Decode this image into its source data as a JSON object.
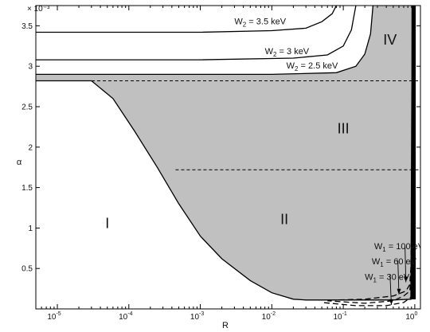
{
  "chart_data": {
    "type": "line",
    "xlabel": "R",
    "ylabel": "α",
    "y_multiplier": "× 10⁻³",
    "x_scale": "log",
    "xlim": [
      5e-06,
      1.2
    ],
    "ylim": [
      0,
      3.75
    ],
    "x_ticks": [
      {
        "value": 1e-05,
        "base": "10",
        "exp": "-5"
      },
      {
        "value": 0.0001,
        "base": "10",
        "exp": "-4"
      },
      {
        "value": 0.001,
        "base": "10",
        "exp": "-3"
      },
      {
        "value": 0.01,
        "base": "10",
        "exp": "-2"
      },
      {
        "value": 0.1,
        "base": "10",
        "exp": "-1"
      },
      {
        "value": 1,
        "base": "10",
        "exp": "0"
      }
    ],
    "y_ticks": [
      {
        "value": 0.5,
        "label": "0.5"
      },
      {
        "value": 1.0,
        "label": "1"
      },
      {
        "value": 1.5,
        "label": "1.5"
      },
      {
        "value": 2.0,
        "label": "2"
      },
      {
        "value": 2.5,
        "label": "2.5"
      },
      {
        "value": 3.0,
        "label": "3"
      },
      {
        "value": 3.5,
        "label": "3.5"
      }
    ],
    "boundary_curve": [
      [
        5e-06,
        2.82
      ],
      [
        3e-05,
        2.82
      ],
      [
        6e-05,
        2.6
      ],
      [
        0.00012,
        2.2
      ],
      [
        0.00025,
        1.75
      ],
      [
        0.0005,
        1.3
      ],
      [
        0.001,
        0.9
      ],
      [
        0.002,
        0.62
      ],
      [
        0.005,
        0.35
      ],
      [
        0.01,
        0.2
      ],
      [
        0.02,
        0.12
      ],
      [
        0.03,
        0.11
      ],
      [
        0.1,
        0.11
      ],
      [
        0.5,
        0.11
      ],
      [
        0.9,
        0.12
      ]
    ],
    "right_boundary": [
      [
        0.9,
        0.12
      ],
      [
        0.91,
        0.8
      ],
      [
        0.92,
        1.8
      ],
      [
        0.93,
        2.8
      ],
      [
        0.935,
        3.75
      ]
    ],
    "dashed_lines": [
      {
        "x_range": [
          5e-06,
          1.2
        ],
        "y": 2.82
      },
      {
        "x_range": [
          0.00045,
          1.2
        ],
        "y": 1.72
      }
    ],
    "w2_series": [
      {
        "name": "W₂ = 3.5 keV",
        "text_main": "W",
        "text_sub": "2",
        "text_rest": " = 3.5 keV",
        "points": [
          [
            5e-06,
            3.42
          ],
          [
            0.001,
            3.42
          ],
          [
            0.01,
            3.44
          ],
          [
            0.03,
            3.47
          ],
          [
            0.05,
            3.55
          ],
          [
            0.07,
            3.65
          ],
          [
            0.08,
            3.75
          ]
        ],
        "label_at": [
          0.003,
          3.52
        ]
      },
      {
        "name": "W₂ = 3 keV",
        "text_main": "W",
        "text_sub": "2",
        "text_rest": " = 3 keV",
        "points": [
          [
            5e-06,
            3.08
          ],
          [
            0.001,
            3.08
          ],
          [
            0.02,
            3.1
          ],
          [
            0.06,
            3.14
          ],
          [
            0.1,
            3.25
          ],
          [
            0.13,
            3.45
          ],
          [
            0.15,
            3.75
          ]
        ],
        "label_at": [
          0.008,
          3.15
        ]
      },
      {
        "name": "W₂ = 2.5 keV",
        "text_main": "W",
        "text_sub": "2",
        "text_rest": " = 2.5 keV",
        "points": [
          [
            5e-06,
            2.9
          ],
          [
            0.01,
            2.9
          ],
          [
            0.08,
            2.92
          ],
          [
            0.15,
            3.0
          ],
          [
            0.2,
            3.15
          ],
          [
            0.24,
            3.4
          ],
          [
            0.26,
            3.75
          ]
        ],
        "label_at": [
          0.016,
          2.97
        ]
      }
    ],
    "w1_series": [
      {
        "name": "W₁ = 100 eV",
        "text_main": "W",
        "text_sub": "1",
        "text_rest": " = 100 eV",
        "points": [
          [
            0.9,
            0.95
          ],
          [
            0.88,
            0.5
          ],
          [
            0.85,
            0.3
          ],
          [
            0.75,
            0.22
          ],
          [
            0.5,
            0.16
          ],
          [
            0.2,
            0.12
          ],
          [
            0.08,
            0.11
          ]
        ],
        "label_at": [
          0.27,
          0.74
        ]
      },
      {
        "name": "W₁ = 60 eV",
        "text_main": "W",
        "text_sub": "1",
        "text_rest": " = 60 eV",
        "points": [
          [
            0.92,
            0.95
          ],
          [
            0.9,
            0.45
          ],
          [
            0.85,
            0.22
          ],
          [
            0.7,
            0.16
          ],
          [
            0.5,
            0.1
          ],
          [
            0.2,
            0.07
          ],
          [
            0.06,
            0.1
          ]
        ],
        "label_at": [
          0.25,
          0.55
        ]
      },
      {
        "name": "W₁ = 30 eV",
        "text_main": "W",
        "text_sub": "1",
        "text_rest": " = 30 eV",
        "points": [
          [
            0.95,
            0.95
          ],
          [
            0.93,
            0.4
          ],
          [
            0.9,
            0.15
          ],
          [
            0.7,
            0.08
          ],
          [
            0.4,
            0.04
          ],
          [
            0.15,
            0.04
          ],
          [
            0.05,
            0.08
          ]
        ],
        "label_at": [
          0.2,
          0.36
        ]
      }
    ],
    "w1_arrows": [
      {
        "from": [
          0.45,
          0.43
        ],
        "to": [
          0.47,
          0.05
        ]
      },
      {
        "from": [
          0.58,
          0.6
        ],
        "to": [
          0.6,
          0.18
        ]
      },
      {
        "from": [
          0.73,
          0.78
        ],
        "to": [
          0.75,
          0.33
        ]
      }
    ],
    "regions": [
      {
        "label": "I",
        "at": [
          5e-05,
          1.0
        ]
      },
      {
        "label": "II",
        "at": [
          0.015,
          1.05
        ]
      },
      {
        "label": "III",
        "at": [
          0.1,
          2.17
        ]
      },
      {
        "label": "IV",
        "at": [
          0.45,
          3.27
        ]
      }
    ],
    "colors": {
      "shade": "#c0c0c0",
      "line": "#000000",
      "frame": "#000000"
    }
  }
}
